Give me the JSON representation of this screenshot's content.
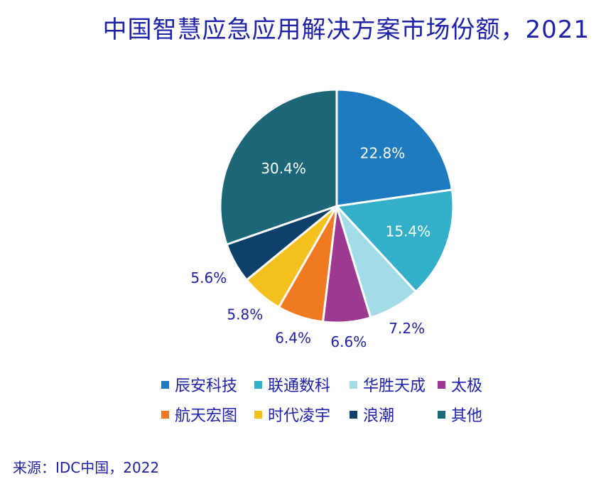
{
  "chart_data": {
    "type": "pie",
    "title": "中国智慧应急应用解决方案市场份额，2021",
    "categories": [
      "辰安科技",
      "联通数科",
      "华胜天成",
      "太极",
      "航天宏图",
      "时代凌宇",
      "浪潮",
      "其他"
    ],
    "values": [
      22.8,
      15.4,
      7.2,
      6.6,
      6.4,
      5.8,
      5.6,
      30.4
    ],
    "data_labels": [
      "22.8%",
      "15.4%",
      "7.2%",
      "6.6%",
      "6.4%",
      "5.8%",
      "5.6%",
      "30.4%"
    ],
    "colors": [
      "#1f7bc0",
      "#33afc9",
      "#a3dce6",
      "#9c3a91",
      "#f07a22",
      "#f4c01f",
      "#0d416c",
      "#1d6678"
    ],
    "start": "12 o'clock",
    "direction": "clockwise",
    "legend_position": "bottom"
  },
  "source": "来源：IDC中国，2022"
}
